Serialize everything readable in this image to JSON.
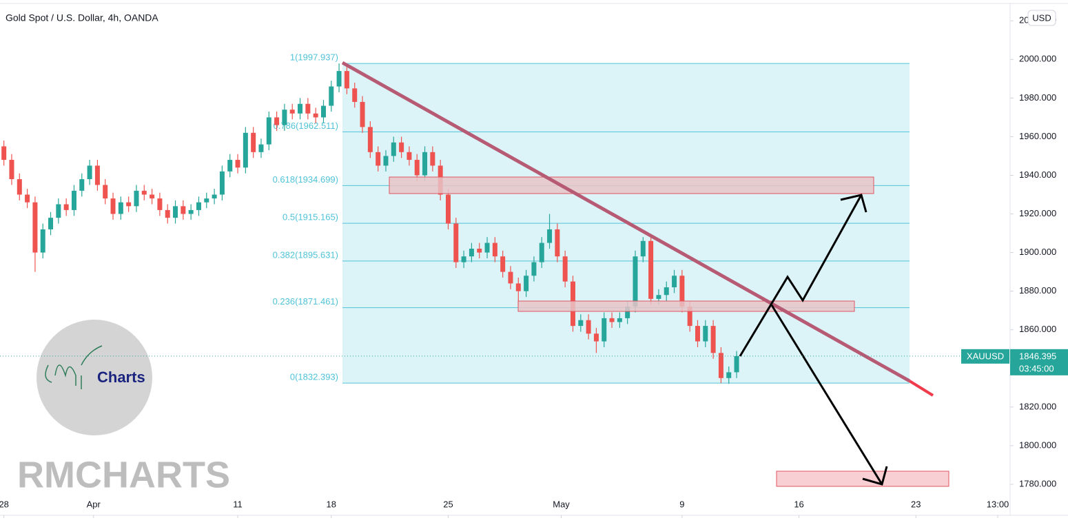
{
  "chart_data": {
    "type": "candlestick",
    "title": "Gold Spot / U.S. Dollar, 4h, OANDA",
    "currency": "USD",
    "symbol": "XAUUSD",
    "last_price": 1846.395,
    "countdown": "03:45:00",
    "logo_text": "Charts",
    "watermark": "RMCHARTS",
    "up_color": "#26a69a",
    "down_color": "#ef5350",
    "xlim": [
      -1,
      258
    ],
    "ylim": [
      1765,
      2029
    ],
    "xticks": [
      {
        "value": 0,
        "label": "28"
      },
      {
        "value": 23,
        "label": "Apr"
      },
      {
        "value": 60,
        "label": "11"
      },
      {
        "value": 84,
        "label": "18"
      },
      {
        "value": 114,
        "label": "25"
      },
      {
        "value": 143,
        "label": "May"
      },
      {
        "value": 174,
        "label": "9"
      },
      {
        "value": 204,
        "label": "16"
      },
      {
        "value": 234,
        "label": "23"
      },
      {
        "value": 255,
        "label": "13:00"
      }
    ],
    "yticks": [
      {
        "value": 1780,
        "label": "1780.000"
      },
      {
        "value": 1800,
        "label": "1800.000"
      },
      {
        "value": 1820,
        "label": "1820.000"
      },
      {
        "value": 1840,
        "label": "1840.000"
      },
      {
        "value": 1860,
        "label": "1860.000"
      },
      {
        "value": 1880,
        "label": "1880.000"
      },
      {
        "value": 1900,
        "label": "1900.000"
      },
      {
        "value": 1920,
        "label": "1920.000"
      },
      {
        "value": 1940,
        "label": "1940.000"
      },
      {
        "value": 1960,
        "label": "1960.000"
      },
      {
        "value": 1980,
        "label": "1980.000"
      },
      {
        "value": 2000,
        "label": "2000.000"
      },
      {
        "value": 2020,
        "label": "2020.000"
      }
    ],
    "fib_levels": [
      {
        "value": 1997.937,
        "label": "1(1997.937)"
      },
      {
        "value": 1962.511,
        "label": "0.786(1962.511)"
      },
      {
        "value": 1934.699,
        "label": "0.618(1934.699)"
      },
      {
        "value": 1915.165,
        "label": "0.5(1915.165)"
      },
      {
        "value": 1895.631,
        "label": "0.382(1895.631)"
      },
      {
        "value": 1871.461,
        "label": "0.236(1871.461)"
      },
      {
        "value": 1832.393,
        "label": "0(1832.393)"
      }
    ],
    "candles": {
      "x": [
        0,
        2,
        4,
        6,
        8,
        10,
        12,
        14,
        16,
        18,
        20,
        22,
        24,
        26,
        28,
        30,
        32,
        34,
        36,
        38,
        40,
        42,
        44,
        46,
        48,
        50,
        52,
        54,
        56,
        58,
        60,
        62,
        64,
        66,
        68,
        70,
        72,
        74,
        76,
        78,
        80,
        82,
        84,
        86,
        88,
        90,
        92,
        94,
        96,
        98,
        100,
        102,
        104,
        106,
        108,
        110,
        112,
        114,
        116,
        118,
        120,
        122,
        124,
        126,
        128,
        130,
        132,
        134,
        136,
        138,
        140,
        142,
        144,
        146,
        148,
        150,
        152,
        154,
        156,
        158,
        160,
        162,
        164,
        166,
        168,
        170,
        172,
        174,
        176,
        178,
        180,
        182,
        184,
        186,
        188
      ],
      "open": [
        1955,
        1948,
        1938,
        1930,
        1926,
        1900,
        1912,
        1918,
        1925,
        1922,
        1932,
        1938,
        1945,
        1935,
        1928,
        1920,
        1926,
        1924,
        1932,
        1930,
        1928,
        1922,
        1918,
        1924,
        1920,
        1922,
        1926,
        1928,
        1930,
        1942,
        1948,
        1944,
        1962,
        1952,
        1956,
        1970,
        1966,
        1974,
        1972,
        1977,
        1972,
        1970,
        1976,
        1986,
        1994,
        1985,
        1978,
        1965,
        1952,
        1945,
        1950,
        1957,
        1952,
        1948,
        1940,
        1952,
        1945,
        1930,
        1915,
        1895,
        1898,
        1902,
        1900,
        1905,
        1898,
        1890,
        1884,
        1880,
        1888,
        1895,
        1905,
        1912,
        1898,
        1885,
        1862,
        1865,
        1858,
        1854,
        1866,
        1864,
        1866,
        1872,
        1898,
        1906,
        1876,
        1878,
        1882,
        1888,
        1872,
        1862,
        1854,
        1862,
        1848,
        1835,
        1838
      ],
      "high": [
        1958,
        1951,
        1941,
        1933,
        1929,
        1915,
        1921,
        1928,
        1928,
        1935,
        1941,
        1948,
        1948,
        1938,
        1931,
        1929,
        1929,
        1935,
        1935,
        1933,
        1931,
        1925,
        1927,
        1927,
        1925,
        1929,
        1931,
        1933,
        1945,
        1951,
        1951,
        1965,
        1965,
        1959,
        1973,
        1973,
        1977,
        1977,
        1980,
        1980,
        1975,
        1979,
        1989,
        1997.937,
        1996,
        1988,
        1981,
        1968,
        1955,
        1953,
        1960,
        1960,
        1955,
        1951,
        1955,
        1955,
        1948,
        1933,
        1918,
        1901,
        1905,
        1905,
        1908,
        1908,
        1901,
        1893,
        1887,
        1891,
        1898,
        1908,
        1920,
        1915,
        1901,
        1888,
        1868,
        1868,
        1861,
        1869,
        1869,
        1869,
        1875,
        1901,
        1908,
        1909,
        1881,
        1885,
        1891,
        1891,
        1875,
        1865,
        1865,
        1865,
        1851,
        1841,
        1849
      ],
      "low": [
        1945,
        1935,
        1927,
        1923,
        1890,
        1897,
        1909,
        1915,
        1919,
        1919,
        1929,
        1935,
        1932,
        1925,
        1917,
        1917,
        1921,
        1921,
        1927,
        1925,
        1919,
        1915,
        1915,
        1917,
        1917,
        1919,
        1923,
        1925,
        1927,
        1939,
        1941,
        1941,
        1949,
        1949,
        1953,
        1963,
        1963,
        1969,
        1969,
        1969,
        1967,
        1967,
        1973,
        1983,
        1982,
        1975,
        1962,
        1949,
        1942,
        1942,
        1947,
        1949,
        1945,
        1937,
        1937,
        1942,
        1927,
        1912,
        1892,
        1892,
        1895,
        1897,
        1897,
        1895,
        1887,
        1881,
        1872,
        1877,
        1885,
        1892,
        1902,
        1895,
        1882,
        1859,
        1859,
        1855,
        1848,
        1851,
        1861,
        1861,
        1863,
        1869,
        1895,
        1873,
        1873,
        1875,
        1879,
        1869,
        1859,
        1851,
        1851,
        1845,
        1832.393,
        1832,
        1835
      ],
      "close": [
        1948,
        1938,
        1930,
        1926,
        1900,
        1912,
        1918,
        1925,
        1922,
        1932,
        1938,
        1945,
        1935,
        1928,
        1920,
        1926,
        1924,
        1932,
        1930,
        1928,
        1922,
        1918,
        1924,
        1920,
        1922,
        1926,
        1928,
        1930,
        1942,
        1948,
        1944,
        1962,
        1952,
        1956,
        1970,
        1966,
        1974,
        1972,
        1977,
        1972,
        1970,
        1976,
        1986,
        1994,
        1985,
        1978,
        1965,
        1952,
        1945,
        1950,
        1957,
        1952,
        1948,
        1940,
        1952,
        1945,
        1930,
        1915,
        1895,
        1898,
        1902,
        1900,
        1905,
        1898,
        1890,
        1884,
        1880,
        1888,
        1895,
        1905,
        1912,
        1898,
        1885,
        1862,
        1865,
        1858,
        1854,
        1866,
        1864,
        1866,
        1872,
        1898,
        1906,
        1876,
        1878,
        1882,
        1888,
        1872,
        1862,
        1854,
        1862,
        1848,
        1835,
        1838,
        1846.395
      ]
    }
  }
}
